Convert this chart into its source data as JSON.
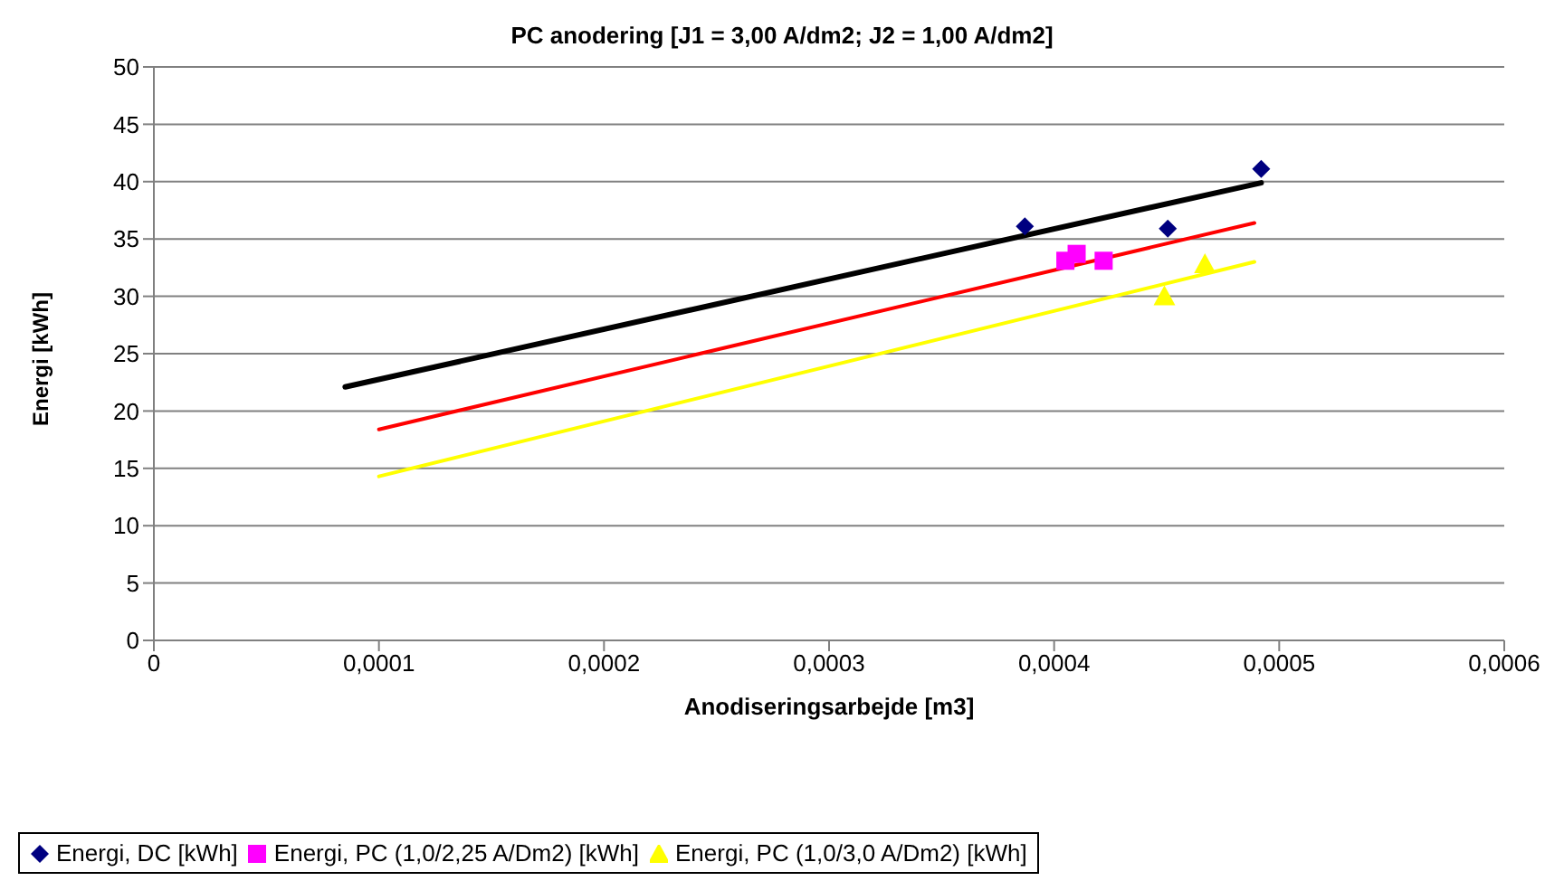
{
  "chart_data": {
    "type": "scatter",
    "title": "PC anodering [J1 = 3,00 A/dm2; J2 = 1,00 A/dm2]",
    "xlabel": "Anodiseringsarbejde [m3]",
    "ylabel": "Energi [kWh]",
    "xlim": [
      0,
      0.0006
    ],
    "xticks": [
      0,
      {
        "value": 0.0001,
        "label": "0,0001"
      },
      {
        "value": 0.0002,
        "label": "0,0002"
      },
      {
        "value": 0.0003,
        "label": "0,0003"
      },
      {
        "value": 0.0004,
        "label": "0,0004"
      },
      {
        "value": 0.0005,
        "label": "0,0005"
      },
      {
        "value": 0.0006,
        "label": "0,0006"
      }
    ],
    "ylim": [
      0,
      50
    ],
    "yticks": [
      0,
      5,
      10,
      15,
      20,
      25,
      30,
      35,
      40,
      45,
      50
    ],
    "grid": "y",
    "legend": "bottom",
    "series": [
      {
        "name": "Energi, DC [kWh]",
        "color": "#000080",
        "marker": "diamond",
        "x": [
          0.000387,
          0.0004505,
          0.000492
        ],
        "values": [
          36.1,
          35.9,
          41.1
        ]
      },
      {
        "name": "Energi, PC (1,0/2,25 A/Dm2) [kWh]",
        "color": "#ff00ff",
        "marker": "square",
        "x": [
          0.000405,
          0.00041,
          0.000422
        ],
        "values": [
          33.1,
          33.7,
          33.1
        ]
      },
      {
        "name": "Energi, PC (1,0/3,0 A/Dm2) [kWh]",
        "color": "#ffff00",
        "marker": "triangle",
        "x": [
          0.000449,
          0.000467
        ],
        "values": [
          30.0,
          32.8
        ]
      },
      {
        "type": "line",
        "color": "#000000",
        "marker": "none",
        "x": [
          8.5e-05,
          0.000492
        ],
        "values": [
          22.1,
          39.9
        ]
      },
      {
        "type": "line",
        "color": "#ff0000",
        "marker": "none",
        "x": [
          0.0001,
          0.000489
        ],
        "values": [
          18.4,
          36.4
        ]
      },
      {
        "type": "line",
        "color": "#ffff00",
        "marker": "none",
        "x": [
          0.0001,
          0.000489
        ],
        "values": [
          14.3,
          33.0
        ]
      }
    ]
  }
}
